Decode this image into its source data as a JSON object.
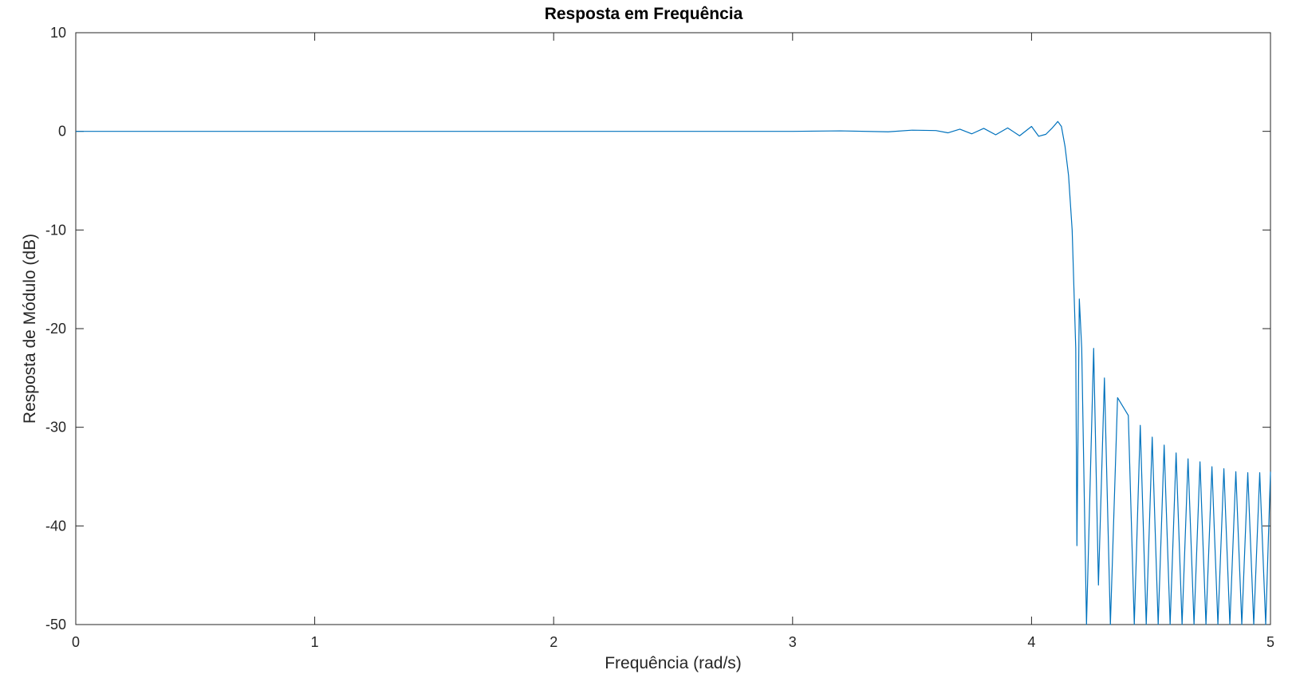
{
  "chart_data": {
    "type": "line",
    "title": "Resposta em Frequência",
    "xlabel": "Frequência (rad/s)",
    "ylabel": "Resposta de Módulo (dB)",
    "xlim": [
      0,
      5
    ],
    "ylim": [
      -50,
      10
    ],
    "x_ticks": [
      0,
      1,
      2,
      3,
      4,
      5
    ],
    "y_ticks": [
      10,
      0,
      -10,
      -20,
      -30,
      -40,
      -50
    ],
    "x_tick_labels": [
      "0",
      "1",
      "2",
      "3",
      "4",
      "5"
    ],
    "y_tick_labels": [
      "10",
      "0",
      "-10",
      "-20",
      "-30",
      "-40",
      "-50"
    ],
    "grid": false,
    "box": true,
    "line_color": "#0072bd",
    "axis_color": "#262626",
    "series": [
      {
        "x": [
          0,
          0.5,
          1.0,
          1.5,
          2.0,
          2.5,
          3.0,
          3.2,
          3.4,
          3.5,
          3.6,
          3.65,
          3.7,
          3.75,
          3.8,
          3.85,
          3.9,
          3.95,
          4.0,
          4.03,
          4.06,
          4.085,
          4.11,
          4.125,
          4.14,
          4.155,
          4.17,
          4.185,
          4.19,
          4.2,
          4.21,
          4.23,
          4.26,
          4.28,
          4.305,
          4.33,
          4.36,
          4.405,
          4.43,
          4.455,
          4.48,
          4.505,
          4.53,
          4.555,
          4.58,
          4.605,
          4.63,
          4.655,
          4.68,
          4.705,
          4.73,
          4.755,
          4.78,
          4.805,
          4.83,
          4.855,
          4.88,
          4.905,
          4.93,
          4.955,
          4.98,
          5.0
        ],
        "y": [
          0,
          0,
          0,
          0,
          0,
          0,
          0,
          0.05,
          -0.05,
          0.12,
          0.08,
          -0.15,
          0.22,
          -0.25,
          0.3,
          -0.35,
          0.35,
          -0.45,
          0.5,
          -0.5,
          -0.3,
          0.3,
          1.0,
          0.5,
          -1.5,
          -4.5,
          -10.0,
          -22.0,
          -42.0,
          -17.0,
          -22.0,
          -50,
          -22.0,
          -46.0,
          -25.0,
          -50,
          -27.0,
          -28.8,
          -50,
          -29.8,
          -50,
          -31.0,
          -50,
          -31.8,
          -50,
          -32.6,
          -50,
          -33.2,
          -50,
          -33.5,
          -50,
          -34.0,
          -50,
          -34.2,
          -50,
          -34.5,
          -50,
          -34.6,
          -50,
          -34.6,
          -50,
          -34.5
        ]
      }
    ]
  }
}
